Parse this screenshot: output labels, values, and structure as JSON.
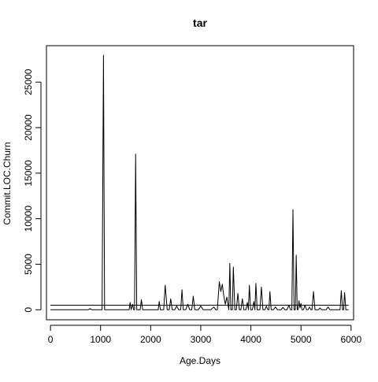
{
  "chart_data": {
    "type": "line",
    "title": "tar",
    "xlabel": "Age.Days",
    "ylabel": "Commit.LOC.Churn",
    "xlim": [
      -80,
      6050
    ],
    "ylim": [
      -1100,
      29000
    ],
    "x_ticks": [
      0,
      1000,
      2000,
      3000,
      4000,
      5000,
      6000
    ],
    "y_ticks": [
      0,
      5000,
      10000,
      15000,
      20000,
      25000
    ],
    "grid": false,
    "legend": "none",
    "series": [
      {
        "values": [
          [
            0,
            0
          ],
          [
            750,
            0
          ],
          [
            790,
            120
          ],
          [
            830,
            0
          ],
          [
            1030,
            0
          ],
          [
            1058,
            27950
          ],
          [
            1080,
            0
          ],
          [
            1570,
            0
          ],
          [
            1590,
            800
          ],
          [
            1610,
            0
          ],
          [
            1640,
            600
          ],
          [
            1660,
            0
          ],
          [
            1678,
            0
          ],
          [
            1700,
            17100
          ],
          [
            1722,
            0
          ],
          [
            1790,
            0
          ],
          [
            1815,
            1100
          ],
          [
            1840,
            0
          ],
          [
            2150,
            0
          ],
          [
            2170,
            900
          ],
          [
            2195,
            0
          ],
          [
            2260,
            0
          ],
          [
            2290,
            2700
          ],
          [
            2330,
            0
          ],
          [
            2370,
            0
          ],
          [
            2400,
            1200
          ],
          [
            2430,
            0
          ],
          [
            2480,
            0
          ],
          [
            2520,
            400
          ],
          [
            2560,
            0
          ],
          [
            2600,
            0
          ],
          [
            2625,
            2200
          ],
          [
            2650,
            0
          ],
          [
            2700,
            0
          ],
          [
            2740,
            600
          ],
          [
            2780,
            0
          ],
          [
            2820,
            0
          ],
          [
            2850,
            1500
          ],
          [
            2880,
            0
          ],
          [
            2950,
            0
          ],
          [
            3000,
            400
          ],
          [
            3050,
            0
          ],
          [
            3200,
            0
          ],
          [
            3260,
            300
          ],
          [
            3300,
            0
          ],
          [
            3330,
            0
          ],
          [
            3370,
            3100
          ],
          [
            3400,
            2000
          ],
          [
            3430,
            2800
          ],
          [
            3460,
            1500
          ],
          [
            3490,
            600
          ],
          [
            3520,
            1400
          ],
          [
            3550,
            300
          ],
          [
            3560,
            0
          ],
          [
            3580,
            5100
          ],
          [
            3600,
            0
          ],
          [
            3630,
            0
          ],
          [
            3650,
            4700
          ],
          [
            3680,
            0
          ],
          [
            3710,
            0
          ],
          [
            3740,
            1800
          ],
          [
            3770,
            0
          ],
          [
            3800,
            0
          ],
          [
            3830,
            1200
          ],
          [
            3860,
            0
          ],
          [
            3900,
            0
          ],
          [
            3930,
            800
          ],
          [
            3950,
            0
          ],
          [
            3970,
            2700
          ],
          [
            3995,
            0
          ],
          [
            4030,
            0
          ],
          [
            4060,
            900
          ],
          [
            4080,
            0
          ],
          [
            4100,
            2900
          ],
          [
            4125,
            0
          ],
          [
            4180,
            0
          ],
          [
            4210,
            2500
          ],
          [
            4240,
            0
          ],
          [
            4280,
            0
          ],
          [
            4310,
            400
          ],
          [
            4340,
            0
          ],
          [
            4360,
            0
          ],
          [
            4380,
            2000
          ],
          [
            4405,
            0
          ],
          [
            4450,
            0
          ],
          [
            4490,
            300
          ],
          [
            4530,
            0
          ],
          [
            4600,
            0
          ],
          [
            4640,
            250
          ],
          [
            4680,
            0
          ],
          [
            4720,
            0
          ],
          [
            4760,
            500
          ],
          [
            4790,
            0
          ],
          [
            4818,
            0
          ],
          [
            4840,
            11000
          ],
          [
            4862,
            0
          ],
          [
            4888,
            0
          ],
          [
            4905,
            6000
          ],
          [
            4925,
            0
          ],
          [
            4940,
            0
          ],
          [
            4960,
            1000
          ],
          [
            4980,
            200
          ],
          [
            5000,
            700
          ],
          [
            5020,
            0
          ],
          [
            5050,
            0
          ],
          [
            5080,
            500
          ],
          [
            5110,
            0
          ],
          [
            5140,
            0
          ],
          [
            5170,
            300
          ],
          [
            5200,
            0
          ],
          [
            5220,
            0
          ],
          [
            5250,
            2000
          ],
          [
            5280,
            0
          ],
          [
            5350,
            0
          ],
          [
            5380,
            200
          ],
          [
            5410,
            0
          ],
          [
            5500,
            0
          ],
          [
            5540,
            300
          ],
          [
            5580,
            0
          ],
          [
            5780,
            0
          ],
          [
            5805,
            2100
          ],
          [
            5830,
            0
          ],
          [
            5850,
            0
          ],
          [
            5870,
            1900
          ],
          [
            5895,
            0
          ],
          [
            5950,
            0
          ]
        ]
      }
    ],
    "reference_line": {
      "y": 500,
      "x_range": [
        0,
        5950
      ]
    }
  }
}
